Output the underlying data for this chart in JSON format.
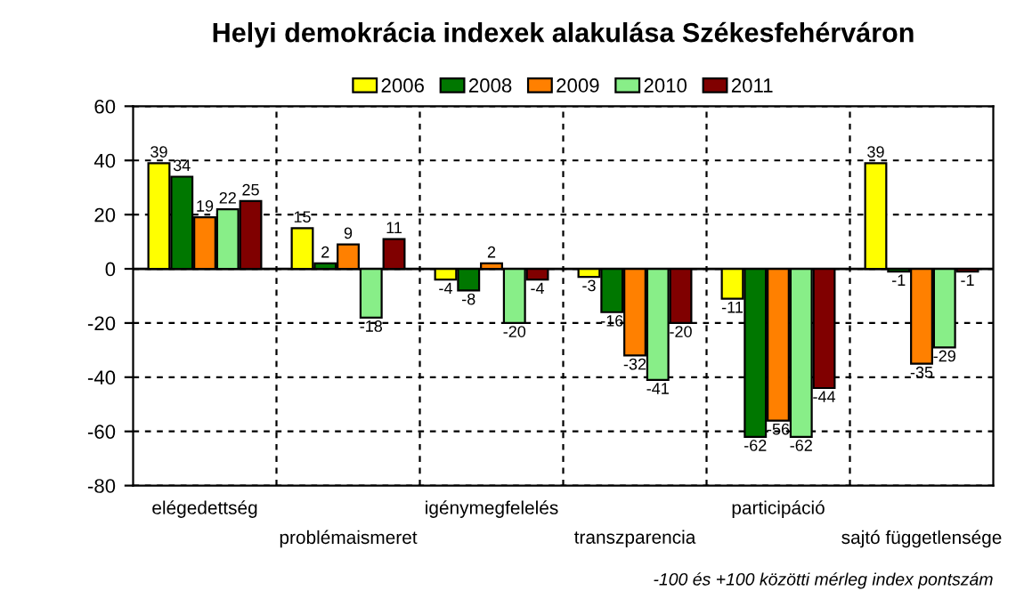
{
  "chart_data": {
    "type": "bar",
    "title": "Helyi demokrácia indexek alakulása Székesfehérváron",
    "categories": [
      "elégedettség",
      "problémaismeret",
      "igénymegfelelés",
      "transzparencia",
      "participáció",
      "sajtó függetlensége"
    ],
    "series": [
      {
        "name": "2006",
        "color": "#ffff00",
        "values": [
          39,
          15,
          -4,
          -3,
          -11,
          39
        ]
      },
      {
        "name": "2008",
        "color": "#007700",
        "values": [
          34,
          2,
          -8,
          -16,
          -62,
          -1
        ]
      },
      {
        "name": "2009",
        "color": "#ff8000",
        "values": [
          19,
          9,
          2,
          -32,
          -56,
          -35
        ]
      },
      {
        "name": "2010",
        "color": "#88ee88",
        "values": [
          22,
          -18,
          -20,
          -41,
          -62,
          -29
        ]
      },
      {
        "name": "2011",
        "color": "#800000",
        "values": [
          25,
          11,
          -4,
          -20,
          -44,
          -1
        ]
      }
    ],
    "ylim": [
      -80,
      60
    ],
    "yticks": [
      -80,
      -60,
      -40,
      -20,
      0,
      20,
      40,
      60
    ],
    "grid": true,
    "legend": "top",
    "data_labels": true,
    "annotations": [
      "-100 és +100 közötti mérleg index pontszám"
    ]
  }
}
